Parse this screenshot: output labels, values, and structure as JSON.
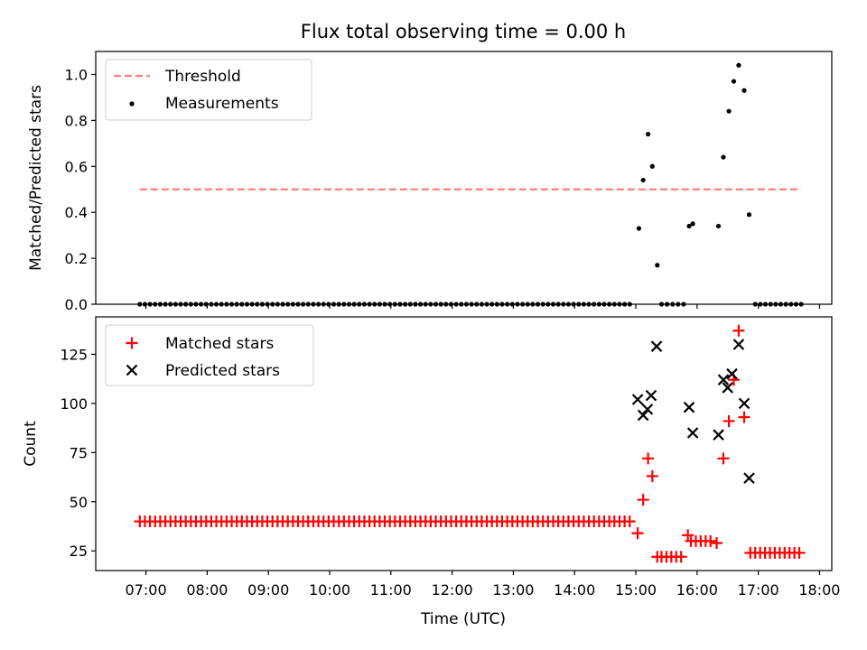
{
  "chart_data": {
    "title": "Flux total observing time = 0.00 h",
    "xlabel": "Time (UTC)",
    "xlim_hours": [
      6.18,
      18.2
    ],
    "x_ticks": [
      "07:00",
      "08:00",
      "09:00",
      "10:00",
      "11:00",
      "12:00",
      "13:00",
      "14:00",
      "15:00",
      "16:00",
      "17:00",
      "18:00"
    ],
    "panels": [
      {
        "type": "scatter",
        "ylabel": "Matched/Predicted stars",
        "ylim": [
          0,
          1.1
        ],
        "y_ticks": [
          "0.0",
          "0.2",
          "0.4",
          "0.6",
          "0.8",
          "1.0"
        ],
        "legend_position": "top-left",
        "threshold": {
          "name": "Threshold",
          "value": 0.5,
          "x_start": 6.9,
          "x_end": 17.7,
          "color": "#ff7f7f"
        },
        "series": [
          {
            "name": "Measurements",
            "color": "#000000",
            "points": [
              [
                15.05,
                0.33
              ],
              [
                15.12,
                0.54
              ],
              [
                15.2,
                0.74
              ],
              [
                15.27,
                0.6
              ],
              [
                15.35,
                0.17
              ],
              [
                15.87,
                0.34
              ],
              [
                15.93,
                0.35
              ],
              [
                16.35,
                0.34
              ],
              [
                16.43,
                0.64
              ],
              [
                16.52,
                0.84
              ],
              [
                16.6,
                0.97
              ],
              [
                16.68,
                1.04
              ],
              [
                16.77,
                0.93
              ],
              [
                16.85,
                0.39
              ]
            ],
            "zero_ranges": [
              [
                6.9,
                14.97,
                0.083333
              ],
              [
                15.42,
                15.79,
                0.09
              ],
              [
                16.95,
                17.7,
                0.083333
              ]
            ]
          }
        ]
      },
      {
        "type": "scatter",
        "ylabel": "Count",
        "ylim": [
          15,
          144
        ],
        "y_ticks": [
          "25",
          "50",
          "75",
          "100",
          "125"
        ],
        "legend_position": "top-left",
        "series": [
          {
            "name": "Matched stars",
            "marker": "+",
            "color": "#ff0000",
            "base": {
              "value": 40,
              "x_start": 6.9,
              "x_end": 14.97,
              "step": 0.083333
            },
            "points": [
              [
                15.03,
                34
              ],
              [
                15.12,
                51
              ],
              [
                15.2,
                72
              ],
              [
                15.27,
                63
              ],
              [
                15.35,
                22
              ],
              [
                15.42,
                22
              ],
              [
                15.5,
                22
              ],
              [
                15.58,
                22
              ],
              [
                15.66,
                22
              ],
              [
                15.74,
                22
              ],
              [
                15.85,
                33
              ],
              [
                15.9,
                30
              ],
              [
                15.98,
                30
              ],
              [
                16.06,
                30
              ],
              [
                16.14,
                30
              ],
              [
                16.22,
                30
              ],
              [
                16.32,
                29
              ],
              [
                16.43,
                72
              ],
              [
                16.52,
                91
              ],
              [
                16.6,
                112
              ],
              [
                16.68,
                137
              ],
              [
                16.77,
                93
              ],
              [
                16.87,
                24
              ],
              [
                16.95,
                24
              ],
              [
                17.03,
                24
              ],
              [
                17.11,
                24
              ],
              [
                17.19,
                24
              ],
              [
                17.27,
                24
              ],
              [
                17.35,
                24
              ],
              [
                17.43,
                24
              ],
              [
                17.51,
                24
              ],
              [
                17.59,
                24
              ],
              [
                17.67,
                24
              ]
            ]
          },
          {
            "name": "Predicted stars",
            "marker": "x",
            "color": "#000000",
            "points": [
              [
                15.03,
                102
              ],
              [
                15.12,
                94
              ],
              [
                15.19,
                97
              ],
              [
                15.25,
                104
              ],
              [
                15.34,
                129
              ],
              [
                15.87,
                98
              ],
              [
                15.93,
                85
              ],
              [
                16.35,
                84
              ],
              [
                16.43,
                112
              ],
              [
                16.5,
                108
              ],
              [
                16.57,
                115
              ],
              [
                16.68,
                130
              ],
              [
                16.77,
                100
              ],
              [
                16.85,
                62
              ]
            ]
          }
        ]
      }
    ]
  }
}
